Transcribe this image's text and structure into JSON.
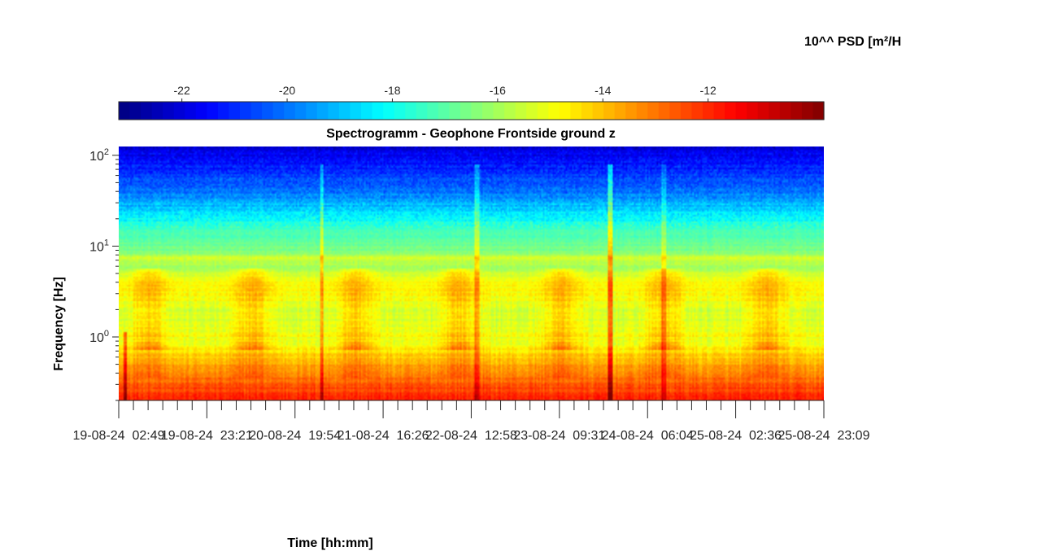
{
  "chart_data": {
    "type": "heatmap",
    "title": "Spectrogramm - Geophone Frontside ground z",
    "xlabel": "Time [hh:mm]",
    "ylabel": "Frequency [Hz]",
    "colorbar_label": "10^^ PSD [m²/H",
    "colorbar": {
      "colormap": "jet",
      "range": [
        -23.2,
        -9.8
      ],
      "ticks": [
        -22,
        -20,
        -18,
        -16,
        -14,
        -12
      ],
      "tick_labels": [
        "-22",
        "-20",
        "-18",
        "-16",
        "-14",
        "-12"
      ]
    },
    "y_axis": {
      "scale": "log",
      "range": [
        0.2,
        125
      ],
      "major_ticks": [
        1,
        10,
        100
      ],
      "tick_labels": [
        {
          "base": "10",
          "exp": "0"
        },
        {
          "base": "10",
          "exp": "1"
        },
        {
          "base": "10",
          "exp": "2"
        }
      ]
    },
    "x_axis": {
      "range": [
        "2024-08-19 02:49",
        "2024-08-25 23:09"
      ],
      "tick_values": [
        "2024-08-19 02:49",
        "2024-08-19 23:21",
        "2024-08-20 19:54",
        "2024-08-21 16:26",
        "2024-08-22 12:58",
        "2024-08-23 09:31",
        "2024-08-24 06:04",
        "2024-08-25 02:36",
        "2024-08-25 23:09"
      ],
      "tick_labels": [
        "19-08-24  02:49",
        "19-08-24  23:21",
        "20-08-24  19:54",
        "21-08-24  16:26",
        "22-08-24  12:58",
        "23-08-24  09:31",
        "24-08-24  06:04",
        "25-08-24  02:36",
        "25-08-24  23:09"
      ],
      "minor_ticks_per_interval": 6
    },
    "psd_profile": {
      "frequency_hz": [
        0.2,
        0.3,
        0.45,
        0.6,
        0.8,
        1.0,
        1.5,
        2.0,
        3.0,
        4.0,
        5.0,
        6.0,
        7.2,
        8.5,
        10,
        15,
        20,
        30,
        50,
        80,
        125
      ],
      "log10_psd": [
        -11.8,
        -12.6,
        -13.6,
        -14.2,
        -15.0,
        -15.0,
        -15.4,
        -15.4,
        -14.8,
        -15.0,
        -15.6,
        -16.2,
        -15.3,
        -16.4,
        -16.8,
        -17.3,
        -18.2,
        -19.2,
        -20.5,
        -21.3,
        -22.0
      ]
    },
    "grid": false
  },
  "colors": {
    "background": "#ffffff",
    "axis": "#262626"
  }
}
